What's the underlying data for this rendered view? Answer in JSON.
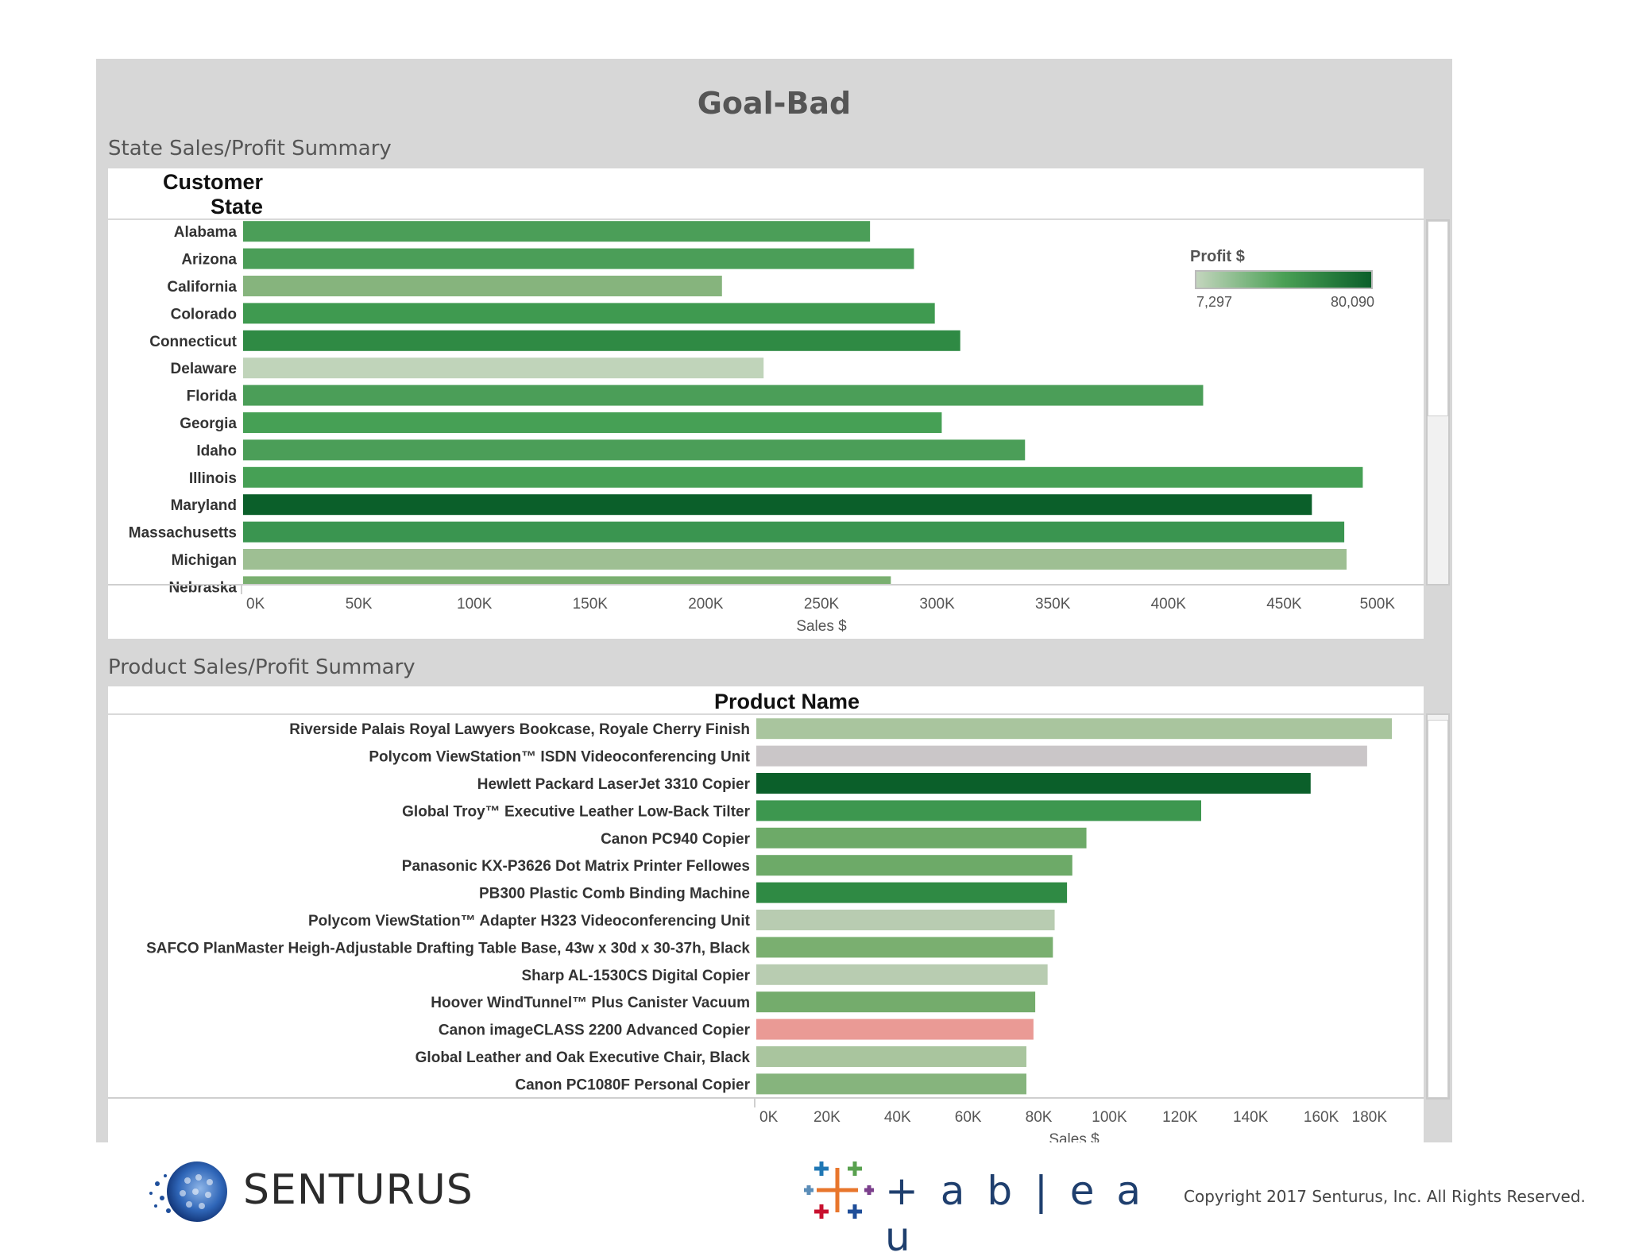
{
  "dashboard": {
    "title": "Goal-Bad",
    "footer": {
      "senturus_logo_text": "SENTURUS",
      "tableau_logo_text": "+ a b | e a u",
      "copyright": "Copyright 2017  Senturus, Inc.  All Rights Reserved."
    },
    "colors": {
      "profit_low": "#c3d5bd",
      "profit_high": "#0b5f2a",
      "negative_profit": "#ea9a95",
      "zero_profit": "#cac6c8",
      "dashboard_bg": "#d7d7d7"
    }
  },
  "state_panel": {
    "section_title": "State Sales/Profit Summary",
    "row_header": [
      "Customer",
      "State"
    ],
    "legend": {
      "title": "Profit $",
      "min_label": "7,297",
      "max_label": "80,090",
      "min": 7297,
      "max": 80090
    }
  },
  "product_panel": {
    "section_title": "Product Sales/Profit Summary",
    "row_header": "Product Name"
  },
  "chart_data": [
    {
      "type": "bar",
      "orientation": "horizontal",
      "categories": [
        "Alabama",
        "Arizona",
        "California",
        "Colorado",
        "Connecticut",
        "Delaware",
        "Florida",
        "Georgia",
        "Idaho",
        "Illinois",
        "Maryland",
        "Massachusetts",
        "Michigan",
        "Nebraska"
      ],
      "values": [
        271000,
        290000,
        207000,
        299000,
        310000,
        225000,
        415000,
        302000,
        338000,
        484000,
        462000,
        476000,
        477000,
        280000
      ],
      "profit_colors": [
        "#4b9e58",
        "#4b9e58",
        "#86b47d",
        "#3f9a50",
        "#2f8a44",
        "#c0d4ba",
        "#4b9e58",
        "#46a055",
        "#4b9e58",
        "#46a055",
        "#0b5f2a",
        "#3a9550",
        "#9ebf93",
        "#7aaf70"
      ],
      "xlabel": "Sales $",
      "ylabel": "Customer State",
      "xlim": [
        0,
        500000
      ],
      "ticks": [
        "0K",
        "50K",
        "100K",
        "150K",
        "200K",
        "250K",
        "300K",
        "350K",
        "400K",
        "450K",
        "500K"
      ],
      "color_legend": "Profit $"
    },
    {
      "type": "bar",
      "orientation": "horizontal",
      "categories": [
        "Riverside Palais Royal Lawyers Bookcase, Royale Cherry Finish",
        "Polycom ViewStation™ ISDN Videoconferencing Unit",
        "Hewlett Packard LaserJet 3310 Copier",
        "Global Troy™ Executive Leather Low-Back Tilter",
        "Canon PC940 Copier",
        "Panasonic KX-P3626 Dot Matrix Printer Fellowes",
        "PB300 Plastic Comb Binding Machine",
        "Polycom ViewStation™ Adapter H323 Videoconferencing Unit",
        "SAFCO PlanMaster Heigh-Adjustable Drafting Table Base, 43w x 30d x 30-37h, Black",
        "Sharp AL-1530CS Digital Copier",
        "Hoover WindTunnel™ Plus Canister Vacuum",
        "Canon imageCLASS 2200 Advanced Copier",
        "Global Leather and Oak Executive Chair, Black",
        "Canon PC1080F Personal Copier"
      ],
      "values": [
        180000,
        173000,
        157000,
        126000,
        93500,
        89500,
        88000,
        84500,
        84000,
        82500,
        79000,
        78500,
        76500,
        76500
      ],
      "profit_colors": [
        "#a9c59e",
        "#cac6c8",
        "#0b5f2a",
        "#3d974f",
        "#6daa68",
        "#6daa68",
        "#2f8a44",
        "#b8ccb1",
        "#7aaf70",
        "#b8ccb1",
        "#74ac6c",
        "#ea9a95",
        "#a9c59e",
        "#86b47d"
      ],
      "xlabel": "Sales $",
      "ylabel": "Product Name",
      "xlim": [
        0,
        180000
      ],
      "ticks": [
        "0K",
        "20K",
        "40K",
        "60K",
        "80K",
        "100K",
        "120K",
        "140K",
        "160K",
        "180K"
      ],
      "color_legend": "Profit $"
    }
  ]
}
